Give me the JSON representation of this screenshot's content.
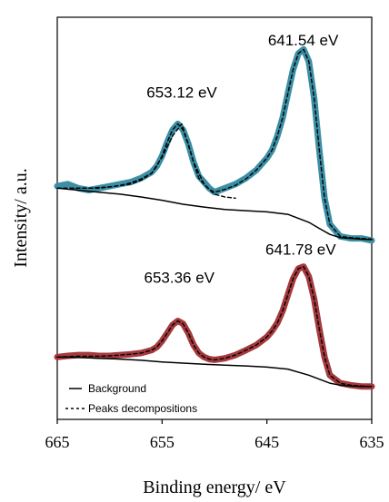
{
  "chart_data": {
    "type": "line",
    "title": "",
    "xlabel": "Binding energy/ eV",
    "ylabel": "Intensity/ a.u.",
    "xlim": [
      665,
      635
    ],
    "x_reversed": true,
    "x_ticks": [
      "665",
      "655",
      "645",
      "635"
    ],
    "x_tick_values": [
      665,
      655,
      645,
      635
    ],
    "ylim": [
      0,
      1
    ],
    "y_ticks": false,
    "grid": false,
    "legend": {
      "placement": "bottom-left",
      "entries": [
        {
          "label": "Background",
          "style": "solid"
        },
        {
          "label": "Peaks decompositions",
          "style": "dashed"
        }
      ]
    },
    "annotations": [
      {
        "text": "641.54 eV",
        "x": 641.54,
        "y": 0.93
      },
      {
        "text": "653.12 eV",
        "x": 653.12,
        "y": 0.8
      },
      {
        "text": "641.78 eV",
        "x": 641.78,
        "y": 0.41
      },
      {
        "text": "653.36 eV",
        "x": 653.36,
        "y": 0.34
      }
    ],
    "colors": {
      "upper_data": "#3b8fa5",
      "lower_data": "#a5393d",
      "fit_line": "#000000",
      "axis": "#000000"
    },
    "series": [
      {
        "role": "data",
        "group": "upper",
        "color": "#3b8fa5",
        "x": [
          665,
          664,
          663,
          662,
          661,
          660,
          659,
          658,
          657,
          656,
          655.5,
          655,
          654.5,
          654,
          653.5,
          653,
          652.5,
          652,
          651.5,
          651,
          650.5,
          650,
          649,
          648,
          647,
          646,
          645,
          644.5,
          644,
          643.5,
          643,
          642.5,
          642,
          641.5,
          641,
          640.5,
          640,
          639.5,
          639,
          638,
          637,
          636,
          635
        ],
        "y": [
          0.58,
          0.585,
          0.575,
          0.57,
          0.575,
          0.58,
          0.585,
          0.59,
          0.6,
          0.615,
          0.63,
          0.655,
          0.69,
          0.72,
          0.735,
          0.72,
          0.685,
          0.64,
          0.605,
          0.59,
          0.575,
          0.565,
          0.575,
          0.585,
          0.6,
          0.62,
          0.65,
          0.67,
          0.705,
          0.75,
          0.81,
          0.87,
          0.91,
          0.92,
          0.89,
          0.8,
          0.67,
          0.55,
          0.485,
          0.455,
          0.45,
          0.45,
          0.445
        ]
      },
      {
        "role": "fit",
        "group": "upper",
        "line": "dashed",
        "x": [
          665,
          664,
          663,
          662,
          661,
          660,
          659,
          658,
          657,
          656,
          655.5,
          655,
          654.5,
          654,
          653.5,
          653,
          652.5,
          652,
          651.5,
          651,
          650.5,
          650,
          649,
          648,
          647,
          646,
          645,
          644.5,
          644,
          643.5,
          643,
          642.5,
          642,
          641.5,
          641,
          640.5,
          640,
          639.5,
          639,
          638,
          637,
          636,
          635
        ],
        "y": [
          0.575,
          0.575,
          0.575,
          0.575,
          0.575,
          0.578,
          0.582,
          0.588,
          0.598,
          0.612,
          0.63,
          0.655,
          0.69,
          0.72,
          0.735,
          0.72,
          0.685,
          0.64,
          0.6,
          0.585,
          0.572,
          0.565,
          0.572,
          0.582,
          0.598,
          0.62,
          0.65,
          0.67,
          0.705,
          0.75,
          0.81,
          0.87,
          0.91,
          0.92,
          0.89,
          0.8,
          0.67,
          0.55,
          0.485,
          0.455,
          0.452,
          0.45,
          0.448
        ]
      },
      {
        "role": "component",
        "group": "upper",
        "line": "dashed",
        "x": [
          665,
          662,
          660,
          658,
          657,
          656,
          655,
          654,
          653.12,
          652,
          651,
          650,
          649,
          648
        ],
        "y": [
          0.575,
          0.575,
          0.578,
          0.585,
          0.595,
          0.612,
          0.652,
          0.705,
          0.735,
          0.64,
          0.585,
          0.56,
          0.553,
          0.55
        ]
      },
      {
        "role": "background",
        "group": "upper",
        "line": "solid",
        "x": [
          665,
          663,
          661,
          659,
          657,
          655,
          653,
          651,
          649,
          647,
          645,
          643,
          641,
          640,
          639,
          638,
          637,
          636,
          635
        ],
        "y": [
          0.575,
          0.57,
          0.565,
          0.56,
          0.553,
          0.545,
          0.535,
          0.528,
          0.522,
          0.519,
          0.516,
          0.51,
          0.49,
          0.475,
          0.46,
          0.452,
          0.45,
          0.448,
          0.447
        ]
      },
      {
        "role": "data",
        "group": "lower",
        "color": "#a5393d",
        "x": [
          665,
          664,
          663,
          662,
          661,
          660,
          659,
          658,
          657,
          656,
          655.5,
          655,
          654.5,
          654,
          653.5,
          653,
          652.5,
          652,
          651.5,
          651,
          650.5,
          650,
          649,
          648,
          647,
          646,
          645,
          644.5,
          644,
          643.5,
          643,
          642.5,
          642,
          641.5,
          641,
          640.5,
          640,
          639.5,
          639,
          638,
          637,
          636,
          635
        ],
        "y": [
          0.155,
          0.158,
          0.16,
          0.16,
          0.158,
          0.158,
          0.16,
          0.162,
          0.165,
          0.172,
          0.18,
          0.195,
          0.215,
          0.235,
          0.245,
          0.238,
          0.215,
          0.185,
          0.165,
          0.155,
          0.15,
          0.148,
          0.152,
          0.16,
          0.172,
          0.185,
          0.205,
          0.22,
          0.24,
          0.27,
          0.31,
          0.35,
          0.375,
          0.38,
          0.355,
          0.3,
          0.225,
          0.155,
          0.11,
          0.09,
          0.085,
          0.082,
          0.082
        ]
      },
      {
        "role": "fit",
        "group": "lower",
        "line": "dashed",
        "x": [
          665,
          664,
          663,
          662,
          661,
          660,
          659,
          658,
          657,
          656,
          655.5,
          655,
          654.5,
          654,
          653.5,
          653,
          652.5,
          652,
          651.5,
          651,
          650.5,
          650,
          649,
          648,
          647,
          646,
          645,
          644.5,
          644,
          643.5,
          643,
          642.5,
          642,
          641.5,
          641,
          640.5,
          640,
          639.5,
          639,
          638,
          637,
          636,
          635
        ],
        "y": [
          0.155,
          0.156,
          0.157,
          0.157,
          0.157,
          0.158,
          0.16,
          0.162,
          0.165,
          0.172,
          0.18,
          0.195,
          0.215,
          0.235,
          0.245,
          0.238,
          0.215,
          0.185,
          0.165,
          0.155,
          0.15,
          0.148,
          0.152,
          0.16,
          0.172,
          0.185,
          0.205,
          0.22,
          0.24,
          0.27,
          0.31,
          0.35,
          0.375,
          0.38,
          0.355,
          0.3,
          0.225,
          0.155,
          0.11,
          0.09,
          0.085,
          0.083,
          0.082
        ]
      },
      {
        "role": "background",
        "group": "lower",
        "line": "solid",
        "x": [
          665,
          663,
          661,
          659,
          657,
          655,
          653,
          651,
          649,
          647,
          645,
          643,
          641,
          640,
          639,
          638,
          637,
          636,
          635
        ],
        "y": [
          0.155,
          0.154,
          0.152,
          0.15,
          0.147,
          0.143,
          0.14,
          0.137,
          0.135,
          0.133,
          0.13,
          0.125,
          0.11,
          0.1,
          0.09,
          0.085,
          0.083,
          0.082,
          0.082
        ]
      }
    ]
  }
}
